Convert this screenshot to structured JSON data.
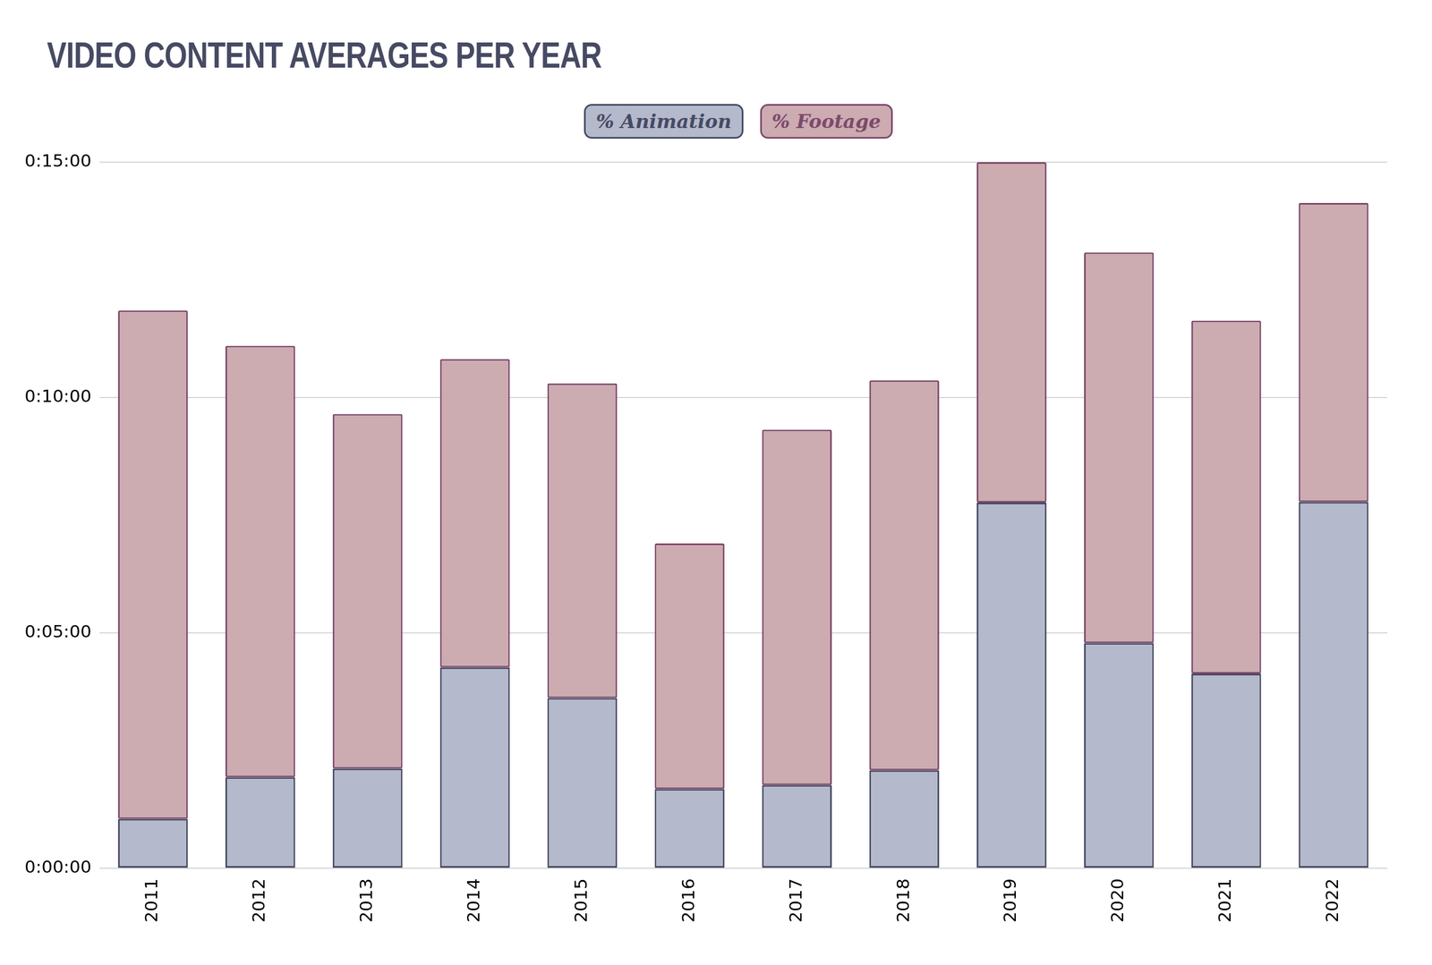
{
  "chart_data": {
    "type": "bar",
    "title": "VIDEO CONTENT AVERAGES PER YEAR",
    "categories": [
      "2011",
      "2012",
      "2013",
      "2014",
      "2015",
      "2016",
      "2017",
      "2018",
      "2019",
      "2020",
      "2021",
      "2022"
    ],
    "series": [
      {
        "name": "% Animation",
        "color": "#b4b9cc",
        "values": [
          63,
          116,
          127,
          256,
          217,
          101,
          106,
          125,
          466,
          287,
          248,
          467
        ]
      },
      {
        "name": "% Footage",
        "color": "#ccabb1",
        "values": [
          648,
          550,
          452,
          393,
          401,
          313,
          453,
          497,
          434,
          498,
          450,
          381
        ]
      }
    ],
    "stacked": true,
    "ylim": [
      0,
      900
    ],
    "yticks": [
      {
        "value": 0,
        "label": "0:00:00"
      },
      {
        "value": 300,
        "label": "0:05:00"
      },
      {
        "value": 600,
        "label": "0:10:00"
      },
      {
        "value": 900,
        "label": "0:15:00"
      }
    ],
    "grid": true,
    "legend": "top"
  }
}
